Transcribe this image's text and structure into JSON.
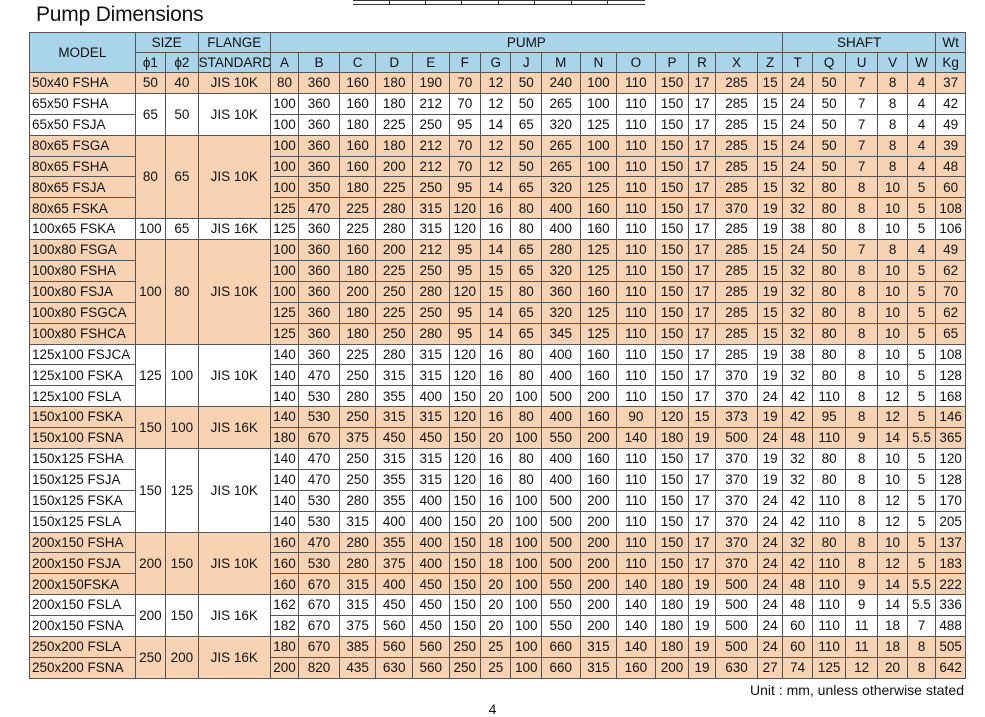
{
  "title": "Pump Dimensions",
  "headers": {
    "model": "MODEL",
    "size": "SIZE",
    "flange": "FLANGE",
    "standard": "STANDARD",
    "pump": "PUMP",
    "shaft": "SHAFT",
    "wt": "Wt",
    "phi1": "ϕ1",
    "phi2": "ϕ2",
    "kg": "Kg",
    "pump_cols": [
      "A",
      "B",
      "C",
      "D",
      "E",
      "F",
      "G",
      "J",
      "M",
      "N",
      "O",
      "P",
      "R",
      "X",
      "Z"
    ],
    "shaft_cols": [
      "T",
      "Q",
      "U",
      "V",
      "W"
    ]
  },
  "groups": [
    {
      "phi1": "50",
      "phi2": "40",
      "flange": "JIS 10K",
      "color": "orange",
      "rows": [
        [
          "50x40 FSHA",
          "80",
          "360",
          "160",
          "180",
          "190",
          "70",
          "12",
          "50",
          "240",
          "100",
          "110",
          "150",
          "17",
          "285",
          "15",
          "24",
          "50",
          "7",
          "8",
          "4",
          "37"
        ]
      ]
    },
    {
      "phi1": "65",
      "phi2": "50",
      "flange": "JIS 10K",
      "color": "white",
      "rows": [
        [
          "65x50 FSHA",
          "100",
          "360",
          "160",
          "180",
          "212",
          "70",
          "12",
          "50",
          "265",
          "100",
          "110",
          "150",
          "17",
          "285",
          "15",
          "24",
          "50",
          "7",
          "8",
          "4",
          "42"
        ],
        [
          "65x50 FSJA",
          "100",
          "360",
          "180",
          "225",
          "250",
          "95",
          "14",
          "65",
          "320",
          "125",
          "110",
          "150",
          "17",
          "285",
          "15",
          "24",
          "50",
          "7",
          "8",
          "4",
          "49"
        ]
      ]
    },
    {
      "phi1": "80",
      "phi2": "65",
      "flange": "JIS 10K",
      "color": "orange",
      "rows": [
        [
          "80x65 FSGA",
          "100",
          "360",
          "160",
          "180",
          "212",
          "70",
          "12",
          "50",
          "265",
          "100",
          "110",
          "150",
          "17",
          "285",
          "15",
          "24",
          "50",
          "7",
          "8",
          "4",
          "39"
        ],
        [
          "80x65 FSHA",
          "100",
          "360",
          "160",
          "200",
          "212",
          "70",
          "12",
          "50",
          "265",
          "100",
          "110",
          "150",
          "17",
          "285",
          "15",
          "24",
          "50",
          "7",
          "8",
          "4",
          "48"
        ],
        [
          "80x65 FSJA",
          "100",
          "350",
          "180",
          "225",
          "250",
          "95",
          "14",
          "65",
          "320",
          "125",
          "110",
          "150",
          "17",
          "285",
          "15",
          "32",
          "80",
          "8",
          "10",
          "5",
          "60"
        ],
        [
          "80x65 FSKA",
          "125",
          "470",
          "225",
          "280",
          "315",
          "120",
          "16",
          "80",
          "400",
          "160",
          "110",
          "150",
          "17",
          "370",
          "19",
          "32",
          "80",
          "8",
          "10",
          "5",
          "108"
        ]
      ]
    },
    {
      "phi1": "100",
      "phi2": "65",
      "flange": "JIS 16K",
      "color": "white",
      "rows": [
        [
          "100x65 FSKA",
          "125",
          "360",
          "225",
          "280",
          "315",
          "120",
          "16",
          "80",
          "400",
          "160",
          "110",
          "150",
          "17",
          "285",
          "19",
          "38",
          "80",
          "8",
          "10",
          "5",
          "106"
        ]
      ]
    },
    {
      "phi1": "100",
      "phi2": "80",
      "flange": "JIS 10K",
      "color": "orange",
      "rows": [
        [
          "100x80 FSGA",
          "100",
          "360",
          "160",
          "200",
          "212",
          "95",
          "14",
          "65",
          "280",
          "125",
          "110",
          "150",
          "17",
          "285",
          "15",
          "24",
          "50",
          "7",
          "8",
          "4",
          "49"
        ],
        [
          "100x80 FSHA",
          "100",
          "360",
          "180",
          "225",
          "250",
          "95",
          "15",
          "65",
          "320",
          "125",
          "110",
          "150",
          "17",
          "285",
          "15",
          "32",
          "80",
          "8",
          "10",
          "5",
          "62"
        ],
        [
          "100x80 FSJA",
          "100",
          "360",
          "200",
          "250",
          "280",
          "120",
          "15",
          "80",
          "360",
          "160",
          "110",
          "150",
          "17",
          "285",
          "19",
          "32",
          "80",
          "8",
          "10",
          "5",
          "70"
        ],
        [
          "100x80 FSGCA",
          "125",
          "360",
          "180",
          "225",
          "250",
          "95",
          "14",
          "65",
          "320",
          "125",
          "110",
          "150",
          "17",
          "285",
          "15",
          "32",
          "80",
          "8",
          "10",
          "5",
          "62"
        ],
        [
          "100x80 FSHCA",
          "125",
          "360",
          "180",
          "250",
          "280",
          "95",
          "14",
          "65",
          "345",
          "125",
          "110",
          "150",
          "17",
          "285",
          "15",
          "32",
          "80",
          "8",
          "10",
          "5",
          "65"
        ]
      ]
    },
    {
      "phi1": "125",
      "phi2": "100",
      "flange": "JIS 10K",
      "color": "white",
      "rows": [
        [
          "125x100 FSJCA",
          "140",
          "360",
          "225",
          "280",
          "315",
          "120",
          "16",
          "80",
          "400",
          "160",
          "110",
          "150",
          "17",
          "285",
          "19",
          "38",
          "80",
          "8",
          "10",
          "5",
          "108"
        ],
        [
          "125x100 FSKA",
          "140",
          "470",
          "250",
          "315",
          "315",
          "120",
          "16",
          "80",
          "400",
          "160",
          "110",
          "150",
          "17",
          "370",
          "19",
          "32",
          "80",
          "8",
          "10",
          "5",
          "128"
        ],
        [
          "125x100 FSLA",
          "140",
          "530",
          "280",
          "355",
          "400",
          "150",
          "20",
          "100",
          "500",
          "200",
          "110",
          "150",
          "17",
          "370",
          "24",
          "42",
          "110",
          "8",
          "12",
          "5",
          "168"
        ]
      ]
    },
    {
      "phi1": "150",
      "phi2": "100",
      "flange": "JIS 16K",
      "color": "orange",
      "rows": [
        [
          "150x100 FSKA",
          "140",
          "530",
          "250",
          "315",
          "315",
          "120",
          "16",
          "80",
          "400",
          "160",
          "90",
          "120",
          "15",
          "373",
          "19",
          "42",
          "95",
          "8",
          "12",
          "5",
          "146"
        ],
        [
          "150x100 FSNA",
          "180",
          "670",
          "375",
          "450",
          "450",
          "150",
          "20",
          "100",
          "550",
          "200",
          "140",
          "180",
          "19",
          "500",
          "24",
          "48",
          "110",
          "9",
          "14",
          "5.5",
          "365"
        ]
      ]
    },
    {
      "phi1": "150",
      "phi2": "125",
      "flange": "JIS 10K",
      "color": "white",
      "rows": [
        [
          "150x125 FSHA",
          "140",
          "470",
          "250",
          "315",
          "315",
          "120",
          "16",
          "80",
          "400",
          "160",
          "110",
          "150",
          "17",
          "370",
          "19",
          "32",
          "80",
          "8",
          "10",
          "5",
          "120"
        ],
        [
          "150x125 FSJA",
          "140",
          "470",
          "250",
          "355",
          "315",
          "120",
          "16",
          "80",
          "400",
          "160",
          "110",
          "150",
          "17",
          "370",
          "19",
          "32",
          "80",
          "8",
          "10",
          "5",
          "128"
        ],
        [
          "150x125 FSKA",
          "140",
          "530",
          "280",
          "355",
          "400",
          "150",
          "16",
          "100",
          "500",
          "200",
          "110",
          "150",
          "17",
          "370",
          "24",
          "42",
          "110",
          "8",
          "12",
          "5",
          "170"
        ],
        [
          "150x125 FSLA",
          "140",
          "530",
          "315",
          "400",
          "400",
          "150",
          "20",
          "100",
          "500",
          "200",
          "110",
          "150",
          "17",
          "370",
          "24",
          "42",
          "110",
          "8",
          "12",
          "5",
          "205"
        ]
      ]
    },
    {
      "phi1": "200",
      "phi2": "150",
      "flange": "JIS 10K",
      "color": "orange",
      "rows": [
        [
          "200x150 FSHA",
          "160",
          "470",
          "280",
          "355",
          "400",
          "150",
          "18",
          "100",
          "500",
          "200",
          "110",
          "150",
          "17",
          "370",
          "24",
          "32",
          "80",
          "8",
          "10",
          "5",
          "137"
        ],
        [
          "200x150 FSJA",
          "160",
          "530",
          "280",
          "375",
          "400",
          "150",
          "18",
          "100",
          "500",
          "200",
          "110",
          "150",
          "17",
          "370",
          "24",
          "42",
          "110",
          "8",
          "12",
          "5",
          "183"
        ],
        [
          "200x150FSKA",
          "160",
          "670",
          "315",
          "400",
          "450",
          "150",
          "20",
          "100",
          "550",
          "200",
          "140",
          "180",
          "19",
          "500",
          "24",
          "48",
          "110",
          "9",
          "14",
          "5.5",
          "222"
        ]
      ]
    },
    {
      "phi1": "200",
      "phi2": "150",
      "flange": "JIS 16K",
      "color": "white",
      "rows": [
        [
          "200x150 FSLA",
          "162",
          "670",
          "315",
          "450",
          "450",
          "150",
          "20",
          "100",
          "550",
          "200",
          "140",
          "180",
          "19",
          "500",
          "24",
          "48",
          "110",
          "9",
          "14",
          "5.5",
          "336"
        ],
        [
          "200x150 FSNA",
          "182",
          "670",
          "375",
          "560",
          "450",
          "150",
          "20",
          "100",
          "550",
          "200",
          "140",
          "180",
          "19",
          "500",
          "24",
          "60",
          "110",
          "11",
          "18",
          "7",
          "488"
        ]
      ]
    },
    {
      "phi1": "250",
      "phi2": "200",
      "flange": "JIS 16K",
      "color": "orange",
      "rows": [
        [
          "250x200 FSLA",
          "180",
          "670",
          "385",
          "560",
          "560",
          "250",
          "25",
          "100",
          "660",
          "315",
          "140",
          "180",
          "19",
          "500",
          "24",
          "60",
          "110",
          "11",
          "18",
          "8",
          "505"
        ],
        [
          "250x200 FSNA",
          "200",
          "820",
          "435",
          "630",
          "560",
          "250",
          "25",
          "100",
          "660",
          "315",
          "160",
          "200",
          "19",
          "630",
          "27",
          "74",
          "125",
          "12",
          "20",
          "8",
          "642"
        ]
      ]
    }
  ],
  "footer": {
    "unit_note": "Unit : mm, unless otherwise stated",
    "page_number": "4"
  }
}
